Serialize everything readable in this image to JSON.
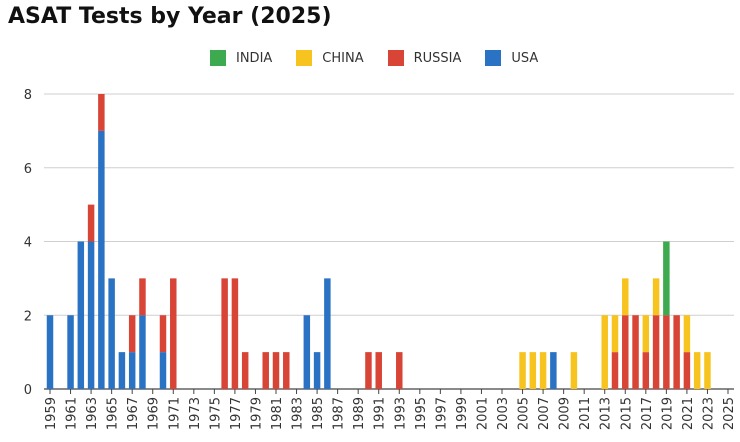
{
  "chart_data": {
    "type": "bar",
    "stacked": true,
    "title": "ASAT Tests by Year (2025)",
    "xlabel": "",
    "ylabel": "",
    "ylim": [
      0,
      8
    ],
    "yticks": [
      0,
      2,
      4,
      6,
      8
    ],
    "grid": true,
    "legend_position": "top",
    "categories": [
      1959,
      1960,
      1961,
      1962,
      1963,
      1964,
      1965,
      1966,
      1967,
      1968,
      1969,
      1970,
      1971,
      1972,
      1973,
      1974,
      1975,
      1976,
      1977,
      1978,
      1979,
      1980,
      1981,
      1982,
      1983,
      1984,
      1985,
      1986,
      1987,
      1988,
      1989,
      1990,
      1991,
      1992,
      1993,
      1994,
      1995,
      1996,
      1997,
      1998,
      1999,
      2000,
      2001,
      2002,
      2003,
      2004,
      2005,
      2006,
      2007,
      2008,
      2009,
      2010,
      2011,
      2012,
      2013,
      2014,
      2015,
      2016,
      2017,
      2018,
      2019,
      2020,
      2021,
      2022,
      2023,
      2024,
      2025
    ],
    "tick_labels": [
      "1959",
      "1961",
      "1963",
      "1965",
      "1967",
      "1969",
      "1971",
      "1973",
      "1975",
      "1977",
      "1979",
      "1981",
      "1983",
      "1985",
      "1987",
      "1989",
      "1991",
      "1993",
      "1995",
      "1997",
      "1999",
      "2001",
      "2003",
      "2005",
      "2007",
      "2009",
      "2011",
      "2013",
      "2015",
      "2017",
      "2019",
      "2021",
      "2023",
      "2025"
    ],
    "series": [
      {
        "name": "USA",
        "color": "#2a73c4",
        "values": [
          2,
          0,
          2,
          4,
          4,
          7,
          3,
          1,
          1,
          2,
          0,
          1,
          0,
          0,
          0,
          0,
          0,
          0,
          0,
          0,
          0,
          0,
          0,
          0,
          0,
          2,
          1,
          3,
          0,
          0,
          0,
          0,
          0,
          0,
          0,
          0,
          0,
          0,
          0,
          0,
          0,
          0,
          0,
          0,
          0,
          0,
          0,
          0,
          0,
          1,
          0,
          0,
          0,
          0,
          0,
          0,
          0,
          0,
          0,
          0,
          0,
          0,
          0,
          0,
          0,
          0,
          0
        ]
      },
      {
        "name": "RUSSIA",
        "color": "#d84436",
        "values": [
          0,
          0,
          0,
          0,
          1,
          1,
          0,
          0,
          1,
          1,
          0,
          1,
          3,
          0,
          0,
          0,
          0,
          3,
          3,
          1,
          0,
          1,
          1,
          1,
          0,
          0,
          0,
          0,
          0,
          0,
          0,
          1,
          1,
          0,
          1,
          0,
          0,
          0,
          0,
          0,
          0,
          0,
          0,
          0,
          0,
          0,
          0,
          0,
          0,
          0,
          0,
          0,
          0,
          0,
          0,
          1,
          2,
          2,
          1,
          2,
          2,
          2,
          1,
          0,
          0,
          0,
          0
        ]
      },
      {
        "name": "CHINA",
        "color": "#f7c41f",
        "values": [
          0,
          0,
          0,
          0,
          0,
          0,
          0,
          0,
          0,
          0,
          0,
          0,
          0,
          0,
          0,
          0,
          0,
          0,
          0,
          0,
          0,
          0,
          0,
          0,
          0,
          0,
          0,
          0,
          0,
          0,
          0,
          0,
          0,
          0,
          0,
          0,
          0,
          0,
          0,
          0,
          0,
          0,
          0,
          0,
          0,
          0,
          1,
          1,
          1,
          0,
          0,
          1,
          0,
          0,
          2,
          1,
          1,
          0,
          1,
          1,
          0,
          0,
          1,
          1,
          1,
          0,
          0
        ]
      },
      {
        "name": "INDIA",
        "color": "#3daa4f",
        "values": [
          0,
          0,
          0,
          0,
          0,
          0,
          0,
          0,
          0,
          0,
          0,
          0,
          0,
          0,
          0,
          0,
          0,
          0,
          0,
          0,
          0,
          0,
          0,
          0,
          0,
          0,
          0,
          0,
          0,
          0,
          0,
          0,
          0,
          0,
          0,
          0,
          0,
          0,
          0,
          0,
          0,
          0,
          0,
          0,
          0,
          0,
          0,
          0,
          0,
          0,
          0,
          0,
          0,
          0,
          0,
          0,
          0,
          0,
          0,
          0,
          2,
          0,
          0,
          0,
          0,
          0,
          0
        ]
      }
    ],
    "legend": [
      {
        "name": "INDIA",
        "color": "#3daa4f"
      },
      {
        "name": "CHINA",
        "color": "#f7c41f"
      },
      {
        "name": "RUSSIA",
        "color": "#d84436"
      },
      {
        "name": "USA",
        "color": "#2a73c4"
      }
    ]
  }
}
